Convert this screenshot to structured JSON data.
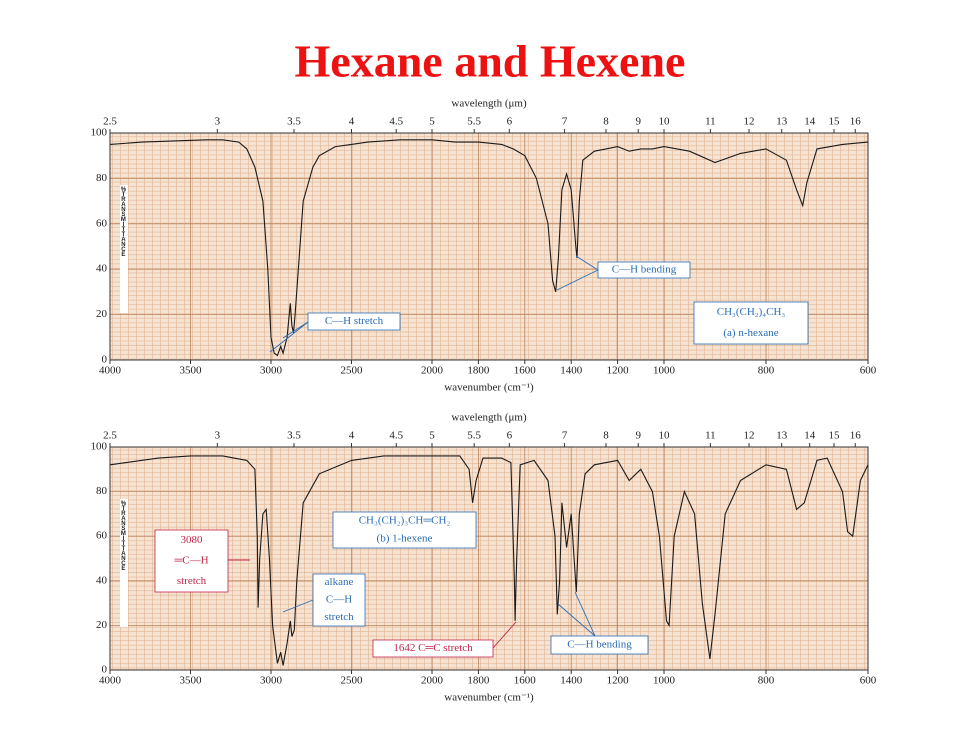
{
  "title": "Hexane and Hexene",
  "chart_data": [
    {
      "type": "line",
      "top_axis_label": "wavelength (μm)",
      "x_label": "wavenumber (cm⁻¹)",
      "y_label": "%TRANSMITTANCE",
      "xlim": [
        4000,
        600
      ],
      "x_breaks": [
        2000,
        1000
      ],
      "ylim": [
        0,
        100
      ],
      "xticks": [
        4000,
        3500,
        3000,
        2500,
        2000,
        1800,
        1600,
        1400,
        1200,
        1000,
        800,
        600
      ],
      "x2ticks": [
        2.5,
        3,
        3.5,
        4,
        4.5,
        5,
        5.5,
        6,
        7,
        8,
        9,
        10,
        11,
        12,
        13,
        14,
        15,
        16
      ],
      "yticks": [
        0,
        20,
        40,
        60,
        80,
        100
      ],
      "grid": true,
      "color": "#1a1a1a",
      "x": [
        4000,
        3800,
        3600,
        3400,
        3300,
        3200,
        3150,
        3100,
        3050,
        3020,
        3000,
        2980,
        2960,
        2940,
        2925,
        2900,
        2880,
        2870,
        2860,
        2850,
        2800,
        2740,
        2700,
        2600,
        2500,
        2400,
        2200,
        2000,
        1900,
        1800,
        1700,
        1650,
        1600,
        1550,
        1500,
        1480,
        1467,
        1455,
        1440,
        1420,
        1400,
        1380,
        1375,
        1365,
        1350,
        1300,
        1250,
        1200,
        1150,
        1100,
        1050,
        1000,
        950,
        900,
        850,
        800,
        760,
        740,
        728,
        720,
        700,
        650,
        600
      ],
      "values": [
        95,
        96,
        96.5,
        97,
        97,
        96,
        93,
        85,
        70,
        40,
        10,
        3,
        2,
        6,
        3,
        10,
        25,
        15,
        12,
        20,
        70,
        85,
        90,
        94,
        95,
        96,
        97,
        97,
        96,
        96,
        95,
        93,
        90,
        80,
        60,
        35,
        30,
        45,
        75,
        82,
        75,
        50,
        45,
        70,
        88,
        92,
        93,
        94,
        92,
        93,
        93,
        94,
        92,
        87,
        91,
        93,
        88,
        75,
        68,
        78,
        93,
        95,
        96
      ],
      "annotations": [
        {
          "lines": [
            "C—H stretch"
          ],
          "color": "#2a6db5"
        },
        {
          "lines": [
            "C—H bending"
          ],
          "color": "#2a6db5"
        },
        {
          "lines": [
            "CH₃(CH₂)₄CH₃",
            "(a) n-hexane"
          ],
          "color": "#2a6db5"
        }
      ]
    },
    {
      "type": "line",
      "top_axis_label": "wavelength (μm)",
      "x_label": "wavenumber (cm⁻¹)",
      "y_label": "%TRANSMITTANCE",
      "xlim": [
        4000,
        600
      ],
      "x_breaks": [
        2000,
        1000
      ],
      "ylim": [
        0,
        100
      ],
      "xticks": [
        4000,
        3500,
        3000,
        2500,
        2000,
        1800,
        1600,
        1400,
        1200,
        1000,
        800,
        600
      ],
      "x2ticks": [
        2.5,
        3,
        3.5,
        4,
        4.5,
        5,
        5.5,
        6,
        7,
        8,
        9,
        10,
        11,
        12,
        13,
        14,
        15,
        16
      ],
      "yticks": [
        0,
        20,
        40,
        60,
        80,
        100
      ],
      "grid": true,
      "color": "#1a1a1a",
      "x": [
        4000,
        3700,
        3500,
        3300,
        3150,
        3100,
        3085,
        3080,
        3070,
        3050,
        3030,
        3010,
        2990,
        2960,
        2940,
        2925,
        2900,
        2880,
        2870,
        2855,
        2840,
        2800,
        2700,
        2500,
        2300,
        2100,
        2000,
        1880,
        1840,
        1825,
        1810,
        1780,
        1700,
        1660,
        1645,
        1642,
        1635,
        1620,
        1560,
        1500,
        1470,
        1460,
        1450,
        1440,
        1420,
        1400,
        1378,
        1365,
        1340,
        1300,
        1250,
        1200,
        1150,
        1100,
        1050,
        1020,
        995,
        990,
        980,
        960,
        940,
        925,
        910,
        900,
        880,
        850,
        800,
        760,
        740,
        725,
        700,
        680,
        650,
        640,
        630,
        615,
        600
      ],
      "values": [
        92,
        95,
        96,
        96,
        94,
        90,
        60,
        28,
        50,
        70,
        72,
        50,
        20,
        3,
        8,
        2,
        12,
        22,
        15,
        18,
        40,
        75,
        88,
        94,
        96,
        96,
        96,
        96,
        90,
        75,
        85,
        95,
        95,
        93,
        40,
        22,
        50,
        92,
        94,
        85,
        60,
        25,
        40,
        75,
        55,
        70,
        35,
        70,
        88,
        92,
        93,
        94,
        85,
        90,
        80,
        60,
        22,
        20,
        60,
        80,
        70,
        30,
        5,
        25,
        70,
        85,
        92,
        90,
        72,
        75,
        94,
        95,
        80,
        62,
        60,
        85,
        92
      ],
      "annotations": [
        {
          "lines": [
            "CH₃(CH₂)₃CH═CH₂",
            "(b) 1-hexene"
          ],
          "color": "#2a6db5"
        },
        {
          "lines": [
            "3080",
            "═C—H",
            "stretch"
          ],
          "color": "#c0254a"
        },
        {
          "lines": [
            "alkane",
            "C—H",
            "stretch"
          ],
          "color": "#2a6db5"
        },
        {
          "lines": [
            "1642 C═C stretch"
          ],
          "color": "#c0254a"
        },
        {
          "lines": [
            "C—H bending"
          ],
          "color": "#2a6db5"
        }
      ]
    }
  ]
}
